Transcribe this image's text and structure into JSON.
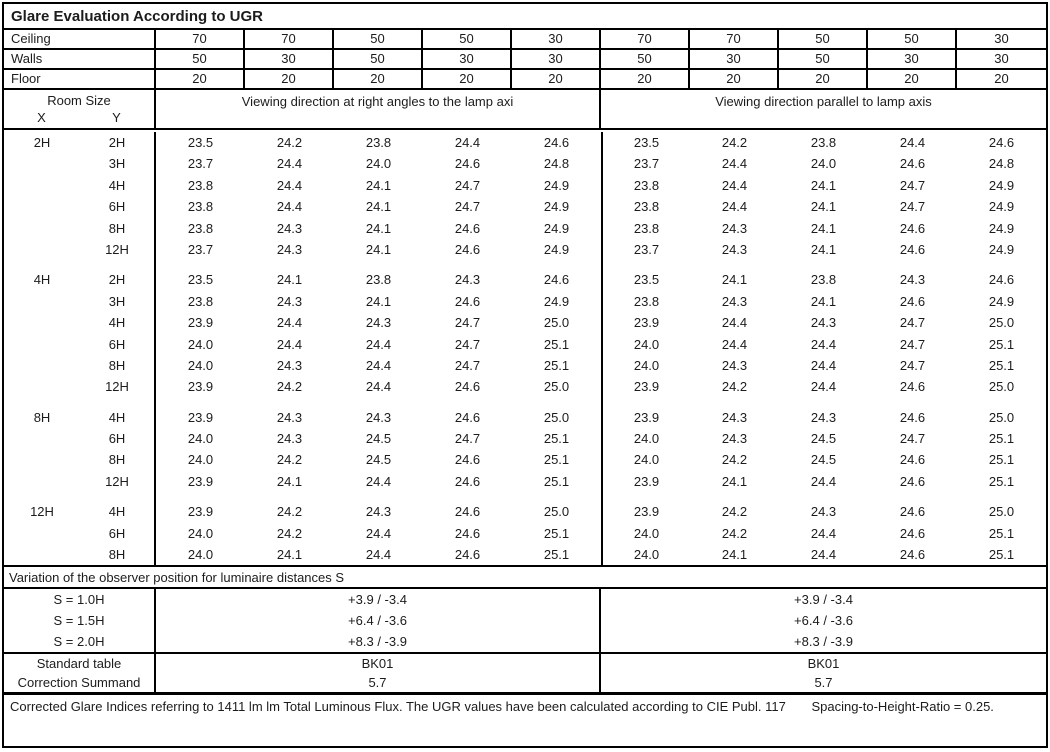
{
  "title": "Glare Evaluation According to UGR",
  "surface_rows": [
    {
      "label": "Ceiling",
      "values": [
        "70",
        "70",
        "50",
        "50",
        "30",
        "70",
        "70",
        "50",
        "50",
        "30"
      ]
    },
    {
      "label": "Walls",
      "values": [
        "50",
        "30",
        "50",
        "30",
        "30",
        "50",
        "30",
        "50",
        "30",
        "30"
      ]
    },
    {
      "label": "Floor",
      "values": [
        "20",
        "20",
        "20",
        "20",
        "20",
        "20",
        "20",
        "20",
        "20",
        "20"
      ]
    }
  ],
  "header": {
    "room_size": "Room Size",
    "x_label": "X",
    "y_label": "Y",
    "left_heading": "Viewing direction at right angles to the lamp axi",
    "right_heading": "Viewing direction parallel to lamp axis"
  },
  "groups": [
    {
      "x": "2H",
      "rows": [
        {
          "y": "2H",
          "left": [
            "23.5",
            "24.2",
            "23.8",
            "24.4",
            "24.6"
          ],
          "right": [
            "23.5",
            "24.2",
            "23.8",
            "24.4",
            "24.6"
          ]
        },
        {
          "y": "3H",
          "left": [
            "23.7",
            "24.4",
            "24.0",
            "24.6",
            "24.8"
          ],
          "right": [
            "23.7",
            "24.4",
            "24.0",
            "24.6",
            "24.8"
          ]
        },
        {
          "y": "4H",
          "left": [
            "23.8",
            "24.4",
            "24.1",
            "24.7",
            "24.9"
          ],
          "right": [
            "23.8",
            "24.4",
            "24.1",
            "24.7",
            "24.9"
          ]
        },
        {
          "y": "6H",
          "left": [
            "23.8",
            "24.4",
            "24.1",
            "24.7",
            "24.9"
          ],
          "right": [
            "23.8",
            "24.4",
            "24.1",
            "24.7",
            "24.9"
          ]
        },
        {
          "y": "8H",
          "left": [
            "23.8",
            "24.3",
            "24.1",
            "24.6",
            "24.9"
          ],
          "right": [
            "23.8",
            "24.3",
            "24.1",
            "24.6",
            "24.9"
          ]
        },
        {
          "y": "12H",
          "left": [
            "23.7",
            "24.3",
            "24.1",
            "24.6",
            "24.9"
          ],
          "right": [
            "23.7",
            "24.3",
            "24.1",
            "24.6",
            "24.9"
          ]
        }
      ]
    },
    {
      "x": "4H",
      "rows": [
        {
          "y": "2H",
          "left": [
            "23.5",
            "24.1",
            "23.8",
            "24.3",
            "24.6"
          ],
          "right": [
            "23.5",
            "24.1",
            "23.8",
            "24.3",
            "24.6"
          ]
        },
        {
          "y": "3H",
          "left": [
            "23.8",
            "24.3",
            "24.1",
            "24.6",
            "24.9"
          ],
          "right": [
            "23.8",
            "24.3",
            "24.1",
            "24.6",
            "24.9"
          ]
        },
        {
          "y": "4H",
          "left": [
            "23.9",
            "24.4",
            "24.3",
            "24.7",
            "25.0"
          ],
          "right": [
            "23.9",
            "24.4",
            "24.3",
            "24.7",
            "25.0"
          ]
        },
        {
          "y": "6H",
          "left": [
            "24.0",
            "24.4",
            "24.4",
            "24.7",
            "25.1"
          ],
          "right": [
            "24.0",
            "24.4",
            "24.4",
            "24.7",
            "25.1"
          ]
        },
        {
          "y": "8H",
          "left": [
            "24.0",
            "24.3",
            "24.4",
            "24.7",
            "25.1"
          ],
          "right": [
            "24.0",
            "24.3",
            "24.4",
            "24.7",
            "25.1"
          ]
        },
        {
          "y": "12H",
          "left": [
            "23.9",
            "24.2",
            "24.4",
            "24.6",
            "25.0"
          ],
          "right": [
            "23.9",
            "24.2",
            "24.4",
            "24.6",
            "25.0"
          ]
        }
      ]
    },
    {
      "x": "8H",
      "rows": [
        {
          "y": "4H",
          "left": [
            "23.9",
            "24.3",
            "24.3",
            "24.6",
            "25.0"
          ],
          "right": [
            "23.9",
            "24.3",
            "24.3",
            "24.6",
            "25.0"
          ]
        },
        {
          "y": "6H",
          "left": [
            "24.0",
            "24.3",
            "24.5",
            "24.7",
            "25.1"
          ],
          "right": [
            "24.0",
            "24.3",
            "24.5",
            "24.7",
            "25.1"
          ]
        },
        {
          "y": "8H",
          "left": [
            "24.0",
            "24.2",
            "24.5",
            "24.6",
            "25.1"
          ],
          "right": [
            "24.0",
            "24.2",
            "24.5",
            "24.6",
            "25.1"
          ]
        },
        {
          "y": "12H",
          "left": [
            "23.9",
            "24.1",
            "24.4",
            "24.6",
            "25.1"
          ],
          "right": [
            "23.9",
            "24.1",
            "24.4",
            "24.6",
            "25.1"
          ]
        }
      ]
    },
    {
      "x": "12H",
      "rows": [
        {
          "y": "4H",
          "left": [
            "23.9",
            "24.2",
            "24.3",
            "24.6",
            "25.0"
          ],
          "right": [
            "23.9",
            "24.2",
            "24.3",
            "24.6",
            "25.0"
          ]
        },
        {
          "y": "6H",
          "left": [
            "24.0",
            "24.2",
            "24.4",
            "24.6",
            "25.1"
          ],
          "right": [
            "24.0",
            "24.2",
            "24.4",
            "24.6",
            "25.1"
          ]
        },
        {
          "y": "8H",
          "left": [
            "24.0",
            "24.1",
            "24.4",
            "24.6",
            "25.1"
          ],
          "right": [
            "24.0",
            "24.1",
            "24.4",
            "24.6",
            "25.1"
          ]
        }
      ]
    }
  ],
  "variation_heading": "Variation of the observer position for luminaire distances S",
  "variation_rows": [
    {
      "label": "S = 1.0H",
      "left": "+3.9 / -3.4",
      "right": "+3.9 / -3.4"
    },
    {
      "label": "S = 1.5H",
      "left": "+6.4 / -3.6",
      "right": "+6.4 / -3.6"
    },
    {
      "label": "S = 2.0H",
      "left": "+8.3 / -3.9",
      "right": "+8.3 / -3.9"
    }
  ],
  "summary_rows": [
    {
      "label": "Standard table",
      "left": "BK01",
      "right": "BK01"
    },
    {
      "label": "Correction Summand",
      "left": "5.7",
      "right": "5.7"
    }
  ],
  "footer": {
    "note": "Corrected Glare Indices referring to 1411 lm lm Total Luminous Flux. The UGR values have been calculated according to CIE Publ. 117",
    "spacing_note": "Spacing-to-Height-Ratio = 0.25."
  }
}
